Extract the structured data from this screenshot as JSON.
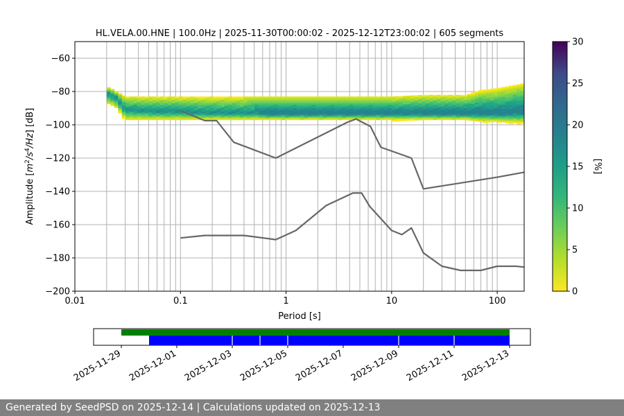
{
  "chart_data": [
    {
      "type": "heatmap",
      "title": "HL.VELA.00.HNE | 100.0Hz | 2025-11-30T00:00:02 - 2025-12-12T23:00:02 | 605 segments",
      "xlabel": "Period [s]",
      "ylabel": "Amplitude [m²/s⁴/Hz] [dB]",
      "x_scale": "log",
      "xlim": [
        0.01,
        180
      ],
      "ylim": [
        -200,
        -50
      ],
      "x_ticks": [
        0.01,
        0.1,
        1,
        10,
        100
      ],
      "x_tick_labels": [
        "0.01",
        "0.1",
        "1",
        "10",
        "100"
      ],
      "y_ticks": [
        -200,
        -180,
        -160,
        -140,
        -120,
        -100,
        -80,
        -60
      ],
      "y_tick_labels": [
        "−200",
        "−180",
        "−160",
        "−140",
        "−120",
        "−100",
        "−80",
        "−60"
      ],
      "grid": true,
      "colorbar": {
        "label": "[%]",
        "range": [
          0,
          30
        ],
        "ticks": [
          0,
          5,
          10,
          15,
          20,
          25,
          30
        ],
        "colormap": "viridis_r"
      },
      "psd_band": {
        "x": [
          0.02,
          0.022,
          0.025,
          0.03,
          0.05,
          0.1,
          0.2,
          0.5,
          1,
          2,
          5,
          10,
          20,
          50,
          70,
          100,
          180
        ],
        "y_top": [
          -77,
          -78,
          -80,
          -83,
          -83,
          -83,
          -83,
          -83,
          -83,
          -83,
          -83,
          -83,
          -82,
          -82,
          -79,
          -78,
          -75
        ],
        "y_bottom": [
          -87,
          -88,
          -90,
          -97,
          -97,
          -97,
          -97,
          -97,
          -97,
          -97,
          -97,
          -97,
          -97,
          -97,
          -98,
          -98,
          -99
        ],
        "mode_y": [
          -81,
          -82,
          -84,
          -91,
          -92,
          -92,
          -93,
          -93,
          -93,
          -93,
          -93,
          -93,
          -93,
          -93,
          -93,
          -93,
          -92
        ]
      },
      "series": [
        {
          "name": "",
          "x": [
            0.1,
            0.17,
            0.22,
            0.32,
            0.8,
            3.8,
            4.6,
            6.3,
            7.9,
            15.4,
            20,
            100,
            180
          ],
          "y": [
            -91.5,
            -97.5,
            -97.5,
            -110.5,
            -120,
            -98.5,
            -96.5,
            -101,
            -113.5,
            -120,
            -138.5,
            -131.5,
            -128.5
          ]
        },
        {
          "name": "",
          "x": [
            0.1,
            0.17,
            0.4,
            0.8,
            1.24,
            2.4,
            4.3,
            5.2,
            6.2,
            10,
            12.5,
            15.4,
            20,
            30,
            45,
            70,
            100,
            150,
            180
          ],
          "y": [
            -168,
            -166.5,
            -166.5,
            -169,
            -163.5,
            -148.5,
            -141,
            -141,
            -149,
            -163.5,
            -166,
            -162,
            -177,
            -185,
            -187.5,
            -187.5,
            -185,
            -185,
            -185.5
          ]
        }
      ]
    },
    {
      "type": "bar",
      "orientation": "horizontal",
      "xlim": [
        "2025-11-28",
        "2025-12-13T18:00"
      ],
      "x_tick_labels": [
        "2025-11-29",
        "2025-12-01",
        "2025-12-03",
        "2025-12-05",
        "2025-12-07",
        "2025-12-09",
        "2025-12-11",
        "2025-12-13"
      ],
      "bars": [
        {
          "color": "#008000",
          "start": "2025-11-29",
          "end": "2025-12-13"
        },
        {
          "color": "#0000ff",
          "start": "2025-11-30",
          "end": "2025-12-13"
        }
      ],
      "gaps": [
        "2025-12-03",
        "2025-12-04",
        "2025-12-05",
        "2025-12-09",
        "2025-12-11"
      ]
    }
  ],
  "footer": {
    "text": "Generated by SeedPSD on 2025-12-14 | Calculations updated on 2025-12-13"
  }
}
